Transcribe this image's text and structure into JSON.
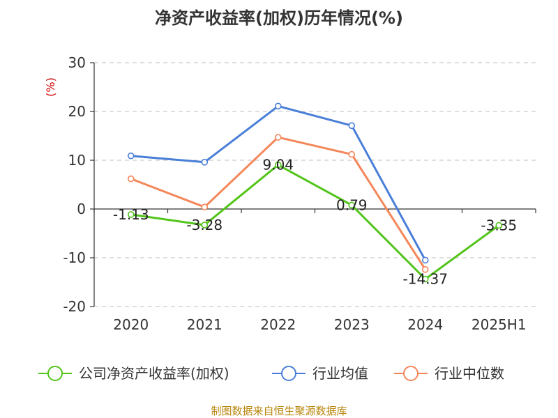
{
  "chart_data": {
    "type": "line",
    "title": "净资产收益率(加权)历年情况(%)",
    "ylabel": "(%)",
    "categories": [
      "2020",
      "2021",
      "2022",
      "2023",
      "2024",
      "2025H1"
    ],
    "ylim": [
      -20,
      30
    ],
    "yticks": [
      "30",
      "20",
      "10",
      "0",
      "-10",
      "-20"
    ],
    "grid": true,
    "legend_position": "bottom",
    "series": [
      {
        "name": "公司净资产收益率(加权)",
        "color": "#52c41a",
        "values": [
          -1.13,
          -3.28,
          9.04,
          0.79,
          -14.37,
          -3.35
        ],
        "labels": [
          "-1.13",
          "-3.28",
          "9.04",
          "0.79",
          "-14.37",
          "-3.35"
        ]
      },
      {
        "name": "行业均值",
        "color": "#4a7fd8",
        "values": [
          10.9,
          9.6,
          21.1,
          17.1,
          -10.5,
          null
        ]
      },
      {
        "name": "行业中位数",
        "color": "#f4875a",
        "values": [
          6.2,
          0.4,
          14.7,
          11.2,
          -12.4,
          null
        ]
      }
    ],
    "source": "制图数据来自恒生聚源数据库"
  }
}
